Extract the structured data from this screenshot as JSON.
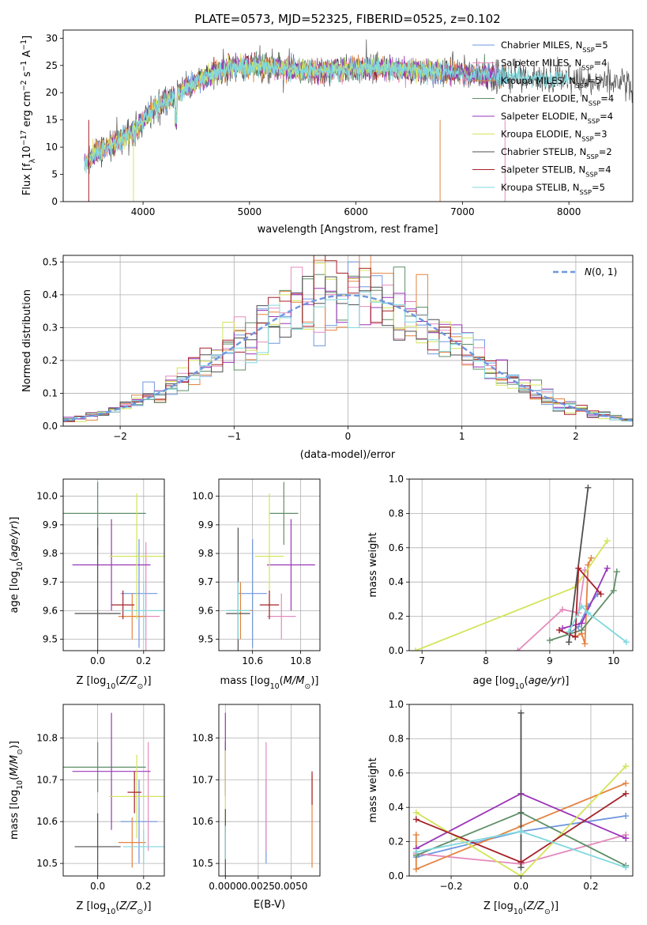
{
  "colors": [
    "#6f97df",
    "#e48bbd",
    "#e4833f",
    "#5f8f68",
    "#9b35b9",
    "#d4e45a",
    "#4f4f4f",
    "#a5222a",
    "#7fd8de"
  ],
  "legend_fontsize_note": "",
  "chart_data": [
    {
      "type": "line",
      "title": "PLATE=0573, MJD=52325, FIBERID=0525, z=0.102",
      "xlabel": "wavelength [Angstrom, rest frame]",
      "ylabel": "Flux [f_λ10^-17 erg cm^-2 s^-1 A^-1]",
      "xlim": [
        3250,
        8600
      ],
      "ylim": [
        0,
        31.5
      ],
      "xticks": [
        4000,
        5000,
        6000,
        7000,
        8000
      ],
      "yticks": [
        0,
        5,
        10,
        15,
        20,
        25,
        30
      ],
      "grid": false,
      "legend": "top-right",
      "series": [
        {
          "name": "Chabrier MILES, N_SSP=5",
          "model": "MILES"
        },
        {
          "name": "Salpeter MILES, N_SSP=4",
          "model": "MILES"
        },
        {
          "name": "Kroupa MILES, N_SSP=5",
          "model": "MILES"
        },
        {
          "name": "Chabrier ELODIE, N_SSP=4",
          "model": "ELODIE"
        },
        {
          "name": "Salpeter ELODIE, N_SSP=4",
          "model": "ELODIE"
        },
        {
          "name": "Kroupa ELODIE, N_SSP=3",
          "model": "ELODIE"
        },
        {
          "name": "Chabrier STELIB, N_SSP=2",
          "model": "STELIB"
        },
        {
          "name": "Salpeter STELIB, N_SSP=4",
          "model": "STELIB"
        },
        {
          "name": "Kroupa STELIB, N_SSP=5",
          "model": "STELIB"
        }
      ],
      "continuum": {
        "x": [
          3450,
          3600,
          3800,
          3950,
          4100,
          4300,
          4500,
          4800,
          5000,
          5300,
          5600,
          6000,
          6300,
          6600,
          7000,
          7400,
          7800,
          8200,
          8600
        ],
        "y": [
          7.5,
          9.5,
          11.5,
          13.5,
          17,
          19.5,
          22,
          24.5,
          25,
          24.5,
          24,
          24.5,
          24.5,
          24,
          23.5,
          23,
          22.5,
          22,
          21.5
        ]
      }
    },
    {
      "type": "step",
      "xlabel": "(data-model)/error",
      "ylabel": "Normed distribution",
      "xlim": [
        -2.5,
        2.5
      ],
      "ylim": [
        0,
        0.52
      ],
      "xticks": [
        -2,
        -1,
        0,
        1,
        2
      ],
      "yticks": [
        0.0,
        0.1,
        0.2,
        0.3,
        0.4,
        0.5
      ],
      "grid": true,
      "legend": "top-right",
      "reference_curve": {
        "name": "N(0,1)",
        "mean": 0,
        "sigma": 1,
        "style": "dashed",
        "color": "#6f97df"
      },
      "bin_width": 0.1
    },
    {
      "type": "errorbar",
      "xlabel": "Z [log10(Z/Z☉)]",
      "ylabel": "age  [log10(age/yr)]",
      "xlim": [
        -0.15,
        0.29
      ],
      "ylim": [
        9.46,
        10.06
      ],
      "xticks": [
        0.0,
        0.2
      ],
      "yticks": [
        9.5,
        9.6,
        9.7,
        9.8,
        9.9,
        10.0
      ],
      "grid": true,
      "points": [
        {
          "x": 0.18,
          "y": 9.66,
          "xerr": 0.08,
          "yerr": 0.19
        },
        {
          "x": 0.21,
          "y": 9.58,
          "xerr": 0.06,
          "yerr": 0.26
        },
        {
          "x": 0.15,
          "y": 9.58,
          "xerr": 0.06,
          "yerr": 0.08
        },
        {
          "x": 0.0,
          "y": 9.94,
          "xerr": 0.21,
          "yerr": 0.11
        },
        {
          "x": 0.06,
          "y": 9.76,
          "xerr": 0.17,
          "yerr": 0.16
        },
        {
          "x": 0.17,
          "y": 9.79,
          "xerr": 0.12,
          "yerr": 0.22
        },
        {
          "x": 0.0,
          "y": 9.59,
          "xerr": 0.1,
          "yerr": 0.3
        },
        {
          "x": 0.11,
          "y": 9.62,
          "xerr": 0.05,
          "yerr": 0.05
        },
        {
          "x": 0.2,
          "y": 9.6,
          "xerr": 0.09,
          "yerr": 0.1
        }
      ]
    },
    {
      "type": "errorbar",
      "xlabel": "mass [log10(M/M☉)]",
      "ylabel": "",
      "xlim": [
        10.46,
        10.88
      ],
      "ylim": [
        9.46,
        10.06
      ],
      "xticks": [
        10.6,
        10.8
      ],
      "yticks": [
        9.5,
        9.6,
        9.7,
        9.8,
        9.9,
        10.0
      ],
      "grid": true,
      "points": [
        {
          "x": 10.6,
          "y": 9.66,
          "xerr": 0.06,
          "yerr": 0.19
        },
        {
          "x": 10.72,
          "y": 9.58,
          "xerr": 0.06,
          "yerr": 0.08
        },
        {
          "x": 10.55,
          "y": 9.6,
          "xerr": 0.05,
          "yerr": 0.1
        },
        {
          "x": 10.73,
          "y": 9.94,
          "xerr": 0.06,
          "yerr": 0.11
        },
        {
          "x": 10.76,
          "y": 9.76,
          "xerr": 0.1,
          "yerr": 0.16
        },
        {
          "x": 10.67,
          "y": 9.79,
          "xerr": 0.06,
          "yerr": 0.22
        },
        {
          "x": 10.54,
          "y": 9.59,
          "xerr": 0.05,
          "yerr": 0.3
        },
        {
          "x": 10.67,
          "y": 9.62,
          "xerr": 0.04,
          "yerr": 0.05
        },
        {
          "x": 10.54,
          "y": 9.6,
          "xerr": 0.05,
          "yerr": 0.1
        }
      ]
    },
    {
      "type": "line",
      "xlabel": "age  [log10(age/yr)]",
      "ylabel": "mass weight",
      "xlim": [
        6.8,
        10.3
      ],
      "ylim": [
        0.0,
        1.0
      ],
      "xticks": [
        7,
        8,
        9,
        10
      ],
      "yticks": [
        0.0,
        0.2,
        0.4,
        0.6,
        0.8,
        1.0
      ],
      "grid": true,
      "series": [
        {
          "name": "Chabrier MILES",
          "x": [
            9.3,
            9.45,
            9.6,
            9.75
          ],
          "y": [
            0.1,
            0.14,
            0.26,
            0.33
          ]
        },
        {
          "name": "Salpeter MILES",
          "x": [
            8.5,
            9.2,
            9.45,
            9.55
          ],
          "y": [
            0.0,
            0.24,
            0.22,
            0.47
          ]
        },
        {
          "name": "Kroupa MILES",
          "x": [
            9.4,
            9.5,
            9.55,
            9.6,
            9.65
          ],
          "y": [
            0.08,
            0.1,
            0.04,
            0.5,
            0.54
          ]
        },
        {
          "name": "Chabrier ELODIE",
          "x": [
            9.0,
            9.5,
            10.0,
            10.05
          ],
          "y": [
            0.06,
            0.12,
            0.35,
            0.46
          ]
        },
        {
          "name": "Salpeter ELODIE",
          "x": [
            9.2,
            9.5,
            9.9
          ],
          "y": [
            0.13,
            0.16,
            0.48
          ]
        },
        {
          "name": "Kroupa ELODIE",
          "x": [
            6.9,
            9.4,
            9.9
          ],
          "y": [
            0.0,
            0.37,
            0.64
          ]
        },
        {
          "name": "Chabrier STELIB",
          "x": [
            9.3,
            9.6
          ],
          "y": [
            0.05,
            0.95
          ]
        },
        {
          "name": "Salpeter STELIB",
          "x": [
            9.15,
            9.4,
            9.45,
            9.8
          ],
          "y": [
            0.12,
            0.08,
            0.48,
            0.33
          ]
        },
        {
          "name": "Kroupa STELIB",
          "x": [
            9.3,
            9.5,
            9.6,
            10.2
          ],
          "y": [
            0.11,
            0.26,
            0.22,
            0.05
          ]
        }
      ]
    },
    {
      "type": "errorbar",
      "xlabel": "Z [log10(Z/Z☉)]",
      "ylabel": "mass [log10(M/M☉)]",
      "xlim": [
        -0.15,
        0.29
      ],
      "ylim": [
        10.47,
        10.88
      ],
      "xticks": [
        0.0,
        0.2
      ],
      "yticks": [
        10.5,
        10.6,
        10.7,
        10.8
      ],
      "grid": true,
      "points": [
        {
          "x": 0.18,
          "y": 10.6,
          "xerr": 0.08,
          "yerr": 0.1
        },
        {
          "x": 0.22,
          "y": 10.66,
          "xerr": 0.06,
          "yerr": 0.13
        },
        {
          "x": 0.15,
          "y": 10.55,
          "xerr": 0.06,
          "yerr": 0.06
        },
        {
          "x": 0.0,
          "y": 10.73,
          "xerr": 0.21,
          "yerr": 0.06
        },
        {
          "x": 0.06,
          "y": 10.72,
          "xerr": 0.17,
          "yerr": 0.14
        },
        {
          "x": 0.17,
          "y": 10.66,
          "xerr": 0.12,
          "yerr": 0.1
        },
        {
          "x": 0.0,
          "y": 10.54,
          "xerr": 0.1,
          "yerr": 0.08
        },
        {
          "x": 0.16,
          "y": 10.67,
          "xerr": 0.03,
          "yerr": 0.05
        },
        {
          "x": 0.2,
          "y": 10.54,
          "xerr": 0.09,
          "yerr": 0.04
        }
      ]
    },
    {
      "type": "errorbar",
      "xlabel": "E(B-V)",
      "ylabel": "",
      "xlim": [
        -0.0005,
        0.0072
      ],
      "ylim": [
        10.47,
        10.88
      ],
      "xticks": [
        0.0,
        0.0025,
        0.005
      ],
      "xticklabels": [
        "0.0000",
        "0.0025",
        "0.0050"
      ],
      "yticks": [
        10.5,
        10.6,
        10.7,
        10.8
      ],
      "grid": true,
      "points": [
        {
          "x": 0.0031,
          "y": 10.6,
          "xerr": 0,
          "yerr": 0.1
        },
        {
          "x": 0.0031,
          "y": 10.66,
          "xerr": 0,
          "yerr": 0.13
        },
        {
          "x": 0.0066,
          "y": 10.6,
          "xerr": 0,
          "yerr": 0.11
        },
        {
          "x": 0.0,
          "y": 10.73,
          "xerr": 0,
          "yerr": 0.06
        },
        {
          "x": 0.0,
          "y": 10.76,
          "xerr": 0,
          "yerr": 0.1
        },
        {
          "x": 0.0,
          "y": 10.67,
          "xerr": 0,
          "yerr": 0.1
        },
        {
          "x": 0.0,
          "y": 10.55,
          "xerr": 0,
          "yerr": 0.08
        },
        {
          "x": 0.0066,
          "y": 10.68,
          "xerr": 0,
          "yerr": 0.04
        },
        {
          "x": 0.0,
          "y": 10.55,
          "xerr": 0,
          "yerr": 0.04
        }
      ]
    },
    {
      "type": "line",
      "xlabel": "Z [log10(Z/Z☉)]",
      "ylabel": "mass weight",
      "xlim": [
        -0.32,
        0.32
      ],
      "ylim": [
        0.0,
        1.0
      ],
      "xticks": [
        -0.2,
        0.0,
        0.2
      ],
      "yticks": [
        0.0,
        0.2,
        0.4,
        0.6,
        0.8,
        1.0
      ],
      "grid": true,
      "series": [
        {
          "name": "Chabrier MILES",
          "x": [
            -0.3,
            0.0,
            0.3
          ],
          "y": [
            0.11,
            0.26,
            0.35
          ]
        },
        {
          "name": "Salpeter MILES",
          "x": [
            -0.3,
            0.0,
            0.3
          ],
          "y": [
            0.13,
            0.07,
            0.24
          ]
        },
        {
          "name": "Kroupa MILES",
          "x": [
            -0.3,
            -0.3,
            0.0,
            0.3
          ],
          "y": [
            0.24,
            0.04,
            0.29,
            0.54
          ]
        },
        {
          "name": "Chabrier ELODIE",
          "x": [
            -0.3,
            0.0,
            0.3
          ],
          "y": [
            0.12,
            0.37,
            0.06
          ]
        },
        {
          "name": "Salpeter ELODIE",
          "x": [
            -0.3,
            0.0,
            0.3
          ],
          "y": [
            0.16,
            0.48,
            0.22
          ]
        },
        {
          "name": "Kroupa ELODIE",
          "x": [
            -0.3,
            0.0,
            0.3
          ],
          "y": [
            0.37,
            0.0,
            0.64
          ]
        },
        {
          "name": "Chabrier STELIB",
          "x": [
            0.0,
            0.0
          ],
          "y": [
            0.05,
            0.95
          ]
        },
        {
          "name": "Salpeter STELIB",
          "x": [
            -0.3,
            0.0,
            0.3
          ],
          "y": [
            0.33,
            0.08,
            0.48
          ]
        },
        {
          "name": "Kroupa STELIB",
          "x": [
            -0.3,
            0.0,
            0.3
          ],
          "y": [
            0.14,
            0.26,
            0.05
          ]
        }
      ]
    }
  ]
}
